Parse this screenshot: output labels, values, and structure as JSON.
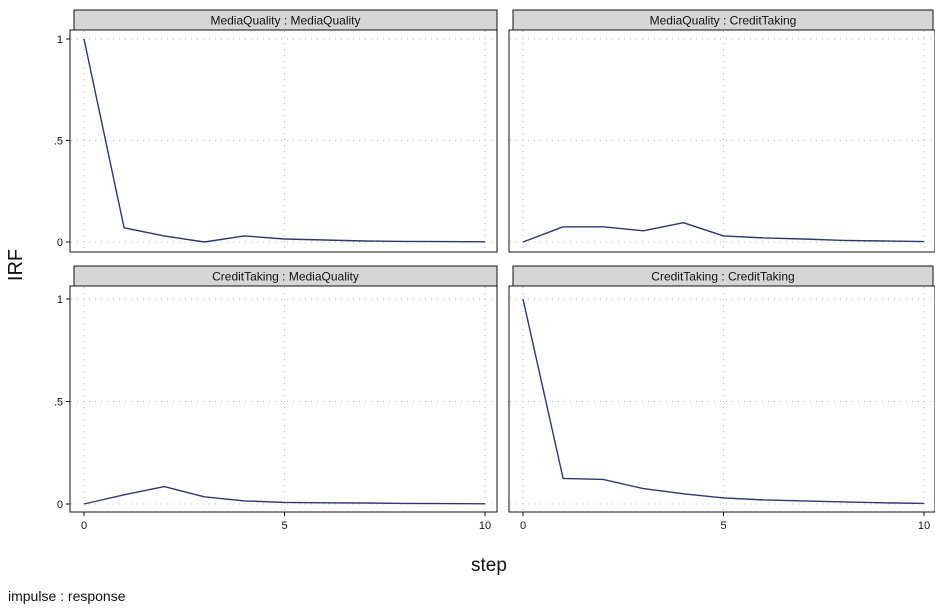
{
  "chart_data": {
    "type": "line",
    "ylabel": "IRF",
    "xlabel": "step",
    "note": "impulse : response",
    "xlim": [
      0,
      10
    ],
    "ylim": [
      0,
      1
    ],
    "x_ticks": [
      "0",
      "5",
      "10"
    ],
    "y_ticks": [
      "0",
      ".5",
      "1"
    ],
    "grid": true,
    "line_color": "#2b3a6b",
    "strip_color": "#d6d6d6",
    "x": [
      0,
      1,
      2,
      3,
      4,
      5,
      6,
      7,
      8,
      9,
      10
    ],
    "panels": [
      {
        "title": "MediaQuality : MediaQuality",
        "values": [
          1,
          0.07,
          0.03,
          0.0,
          0.03,
          0.015,
          0.01,
          0.005,
          0.003,
          0.002,
          0.001
        ]
      },
      {
        "title": "MediaQuality : CreditTaking",
        "values": [
          0.0,
          0.075,
          0.075,
          0.055,
          0.095,
          0.03,
          0.02,
          0.015,
          0.008,
          0.005,
          0.002
        ]
      },
      {
        "title": "CreditTaking : MediaQuality",
        "values": [
          0.0,
          0.045,
          0.085,
          0.035,
          0.015,
          0.008,
          0.006,
          0.005,
          0.003,
          0.002,
          0.001
        ]
      },
      {
        "title": "CreditTaking : CreditTaking",
        "values": [
          1,
          0.125,
          0.12,
          0.075,
          0.05,
          0.03,
          0.02,
          0.015,
          0.01,
          0.006,
          0.003
        ]
      }
    ]
  }
}
